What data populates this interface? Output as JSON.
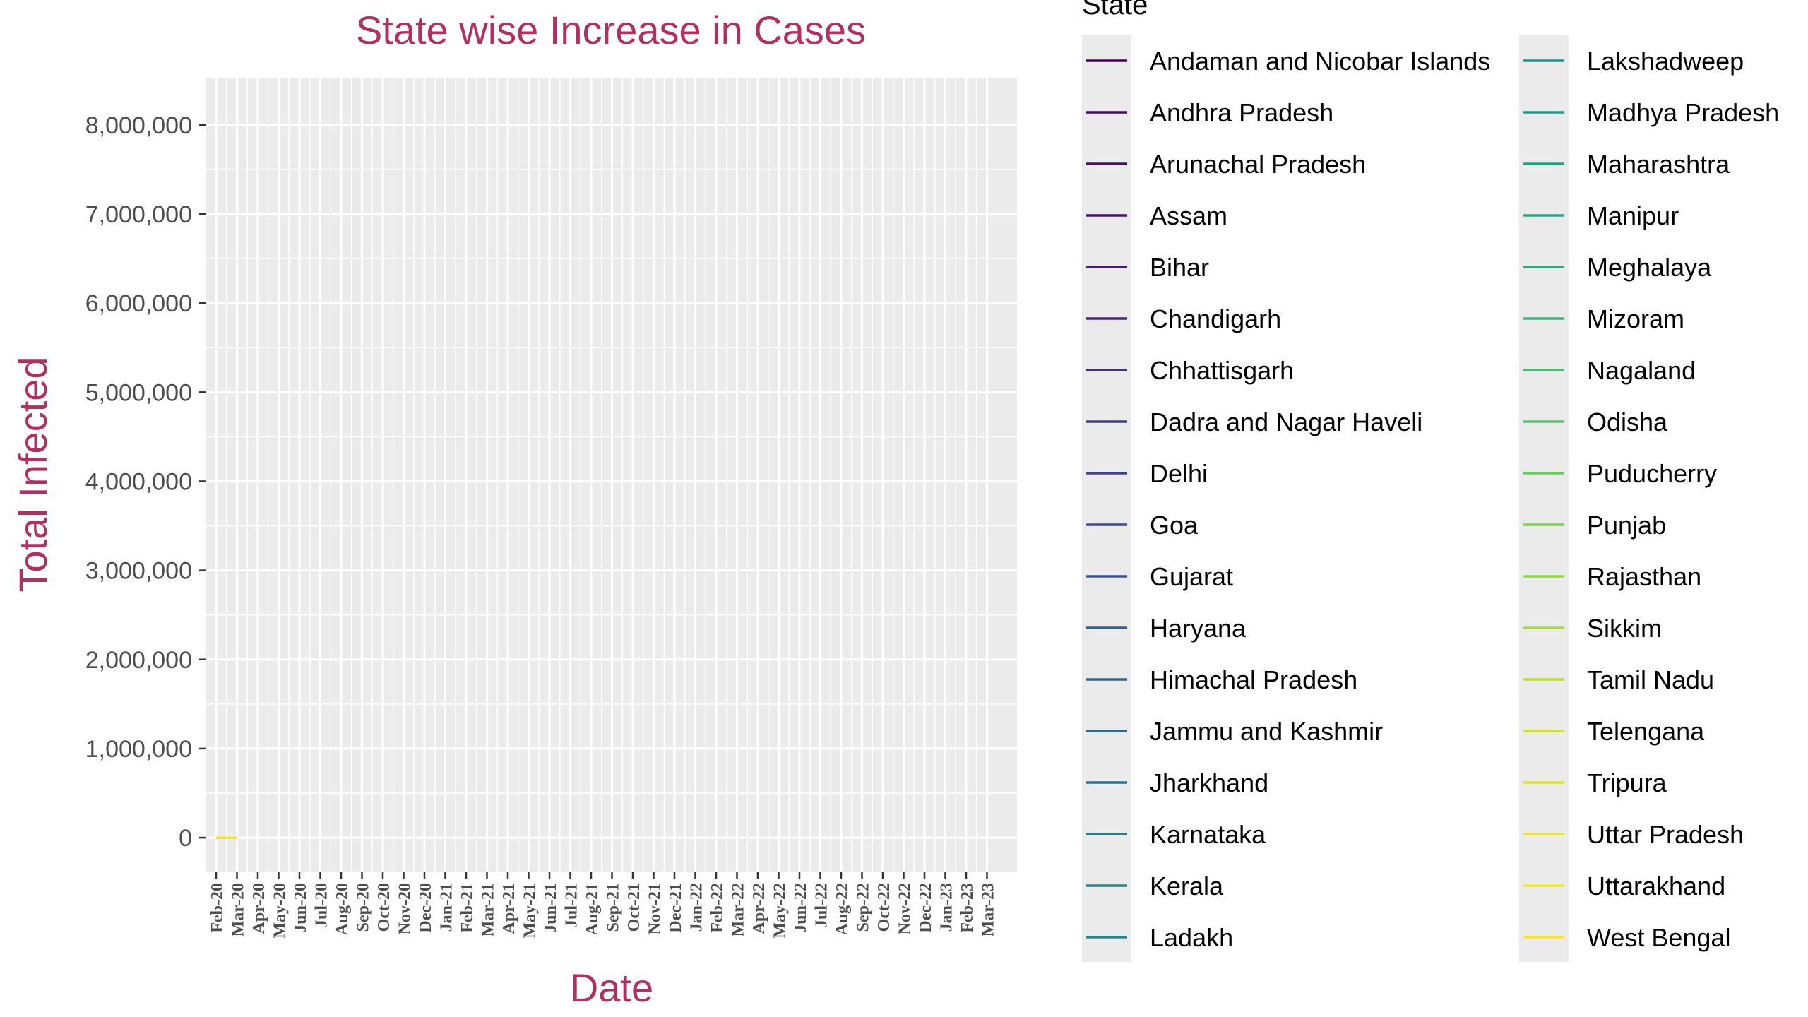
{
  "chart_data": {
    "type": "line",
    "title": "State wise Increase in Cases",
    "xlabel": "Date",
    "ylabel": "Total Infected",
    "title_color": "#B03060",
    "ylim": [
      -380000,
      8530000
    ],
    "y_ticks": [
      0,
      1000000,
      2000000,
      3000000,
      4000000,
      5000000,
      6000000,
      7000000,
      8000000
    ],
    "y_tick_labels": [
      "0",
      "1,000,000",
      "2,000,000",
      "3,000,000",
      "4,000,000",
      "5,000,000",
      "6,000,000",
      "7,000,000",
      "8,000,000"
    ],
    "x_tick_labels": [
      "Feb-20",
      "Mar-20",
      "Apr-20",
      "May-20",
      "Jun-20",
      "Jul-20",
      "Aug-20",
      "Sep-20",
      "Oct-20",
      "Nov-20",
      "Dec-20",
      "Jan-21",
      "Feb-21",
      "Mar-21",
      "Apr-21",
      "May-21",
      "Jun-21",
      "Jul-21",
      "Aug-21",
      "Sep-21",
      "Oct-21",
      "Nov-21",
      "Dec-21",
      "Jan-22",
      "Feb-22",
      "Mar-22",
      "Apr-22",
      "May-22",
      "Jun-22",
      "Jul-22",
      "Aug-22",
      "Sep-22",
      "Oct-22",
      "Nov-22",
      "Dec-22",
      "Jan-23",
      "Feb-23",
      "Mar-23"
    ],
    "grid": true,
    "panel_background": "#EBEBEB",
    "legend": {
      "title": "State",
      "placement": "right",
      "columns": 2
    },
    "series": [
      {
        "name": "Andaman and Nicobar Islands",
        "color": "#440154",
        "x": [
          "Feb-20",
          "Mar-20"
        ],
        "values": [
          0,
          0
        ]
      },
      {
        "name": "Andhra Pradesh",
        "color": "#46085C",
        "x": [
          "Feb-20",
          "Mar-20"
        ],
        "values": [
          0,
          0
        ]
      },
      {
        "name": "Arunachal Pradesh",
        "color": "#471063",
        "x": [
          "Feb-20",
          "Mar-20"
        ],
        "values": [
          0,
          0
        ]
      },
      {
        "name": "Assam",
        "color": "#481769",
        "x": [
          "Feb-20",
          "Mar-20"
        ],
        "values": [
          0,
          0
        ]
      },
      {
        "name": "Bihar",
        "color": "#481D6F",
        "x": [
          "Feb-20",
          "Mar-20"
        ],
        "values": [
          0,
          0
        ]
      },
      {
        "name": "Chandigarh",
        "color": "#472575",
        "x": [
          "Feb-20",
          "Mar-20"
        ],
        "values": [
          0,
          0
        ]
      },
      {
        "name": "Chhattisgarh",
        "color": "#462C7B",
        "x": [
          "Feb-20",
          "Mar-20"
        ],
        "values": [
          0,
          0
        ]
      },
      {
        "name": "Dadra and Nagar Haveli",
        "color": "#433E85",
        "x": [
          "Feb-20",
          "Mar-20"
        ],
        "values": [
          0,
          0
        ]
      },
      {
        "name": "Delhi",
        "color": "#404588",
        "x": [
          "Feb-20",
          "Mar-20"
        ],
        "values": [
          0,
          0
        ]
      },
      {
        "name": "Goa",
        "color": "#3E4A89",
        "x": [
          "Feb-20",
          "Mar-20"
        ],
        "values": [
          0,
          0
        ]
      },
      {
        "name": "Gujarat",
        "color": "#39568C",
        "x": [
          "Feb-20",
          "Mar-20"
        ],
        "values": [
          0,
          0
        ]
      },
      {
        "name": "Haryana",
        "color": "#355E8D",
        "x": [
          "Feb-20",
          "Mar-20"
        ],
        "values": [
          0,
          0
        ]
      },
      {
        "name": "Himachal Pradesh",
        "color": "#31668E",
        "x": [
          "Feb-20",
          "Mar-20"
        ],
        "values": [
          0,
          0
        ]
      },
      {
        "name": "Jammu and Kashmir",
        "color": "#2E6D8E",
        "x": [
          "Feb-20",
          "Mar-20"
        ],
        "values": [
          0,
          0
        ]
      },
      {
        "name": "Jharkhand",
        "color": "#2B748E",
        "x": [
          "Feb-20",
          "Mar-20"
        ],
        "values": [
          0,
          0
        ]
      },
      {
        "name": "Karnataka",
        "color": "#287C8E",
        "x": [
          "Feb-20",
          "Mar-20"
        ],
        "values": [
          0,
          0
        ]
      },
      {
        "name": "Kerala",
        "color": "#25838E",
        "x": [
          "Feb-20",
          "Mar-20"
        ],
        "values": [
          0,
          0
        ]
      },
      {
        "name": "Ladakh",
        "color": "#228A8D",
        "x": [
          "Feb-20",
          "Mar-20"
        ],
        "values": [
          0,
          0
        ]
      },
      {
        "name": "Lakshadweep",
        "color": "#20928C",
        "x": [
          "Feb-20",
          "Mar-20"
        ],
        "values": [
          0,
          0
        ]
      },
      {
        "name": "Madhya Pradesh",
        "color": "#1F998A",
        "x": [
          "Feb-20",
          "Mar-20"
        ],
        "values": [
          0,
          0
        ]
      },
      {
        "name": "Maharashtra",
        "color": "#1FA088",
        "x": [
          "Feb-20",
          "Mar-20"
        ],
        "values": [
          0,
          0
        ]
      },
      {
        "name": "Manipur",
        "color": "#22A884",
        "x": [
          "Feb-20",
          "Mar-20"
        ],
        "values": [
          0,
          0
        ]
      },
      {
        "name": "Meghalaya",
        "color": "#29AF7F",
        "x": [
          "Feb-20",
          "Mar-20"
        ],
        "values": [
          0,
          0
        ]
      },
      {
        "name": "Mizoram",
        "color": "#35B779",
        "x": [
          "Feb-20",
          "Mar-20"
        ],
        "values": [
          0,
          0
        ]
      },
      {
        "name": "Nagaland",
        "color": "#43BF71",
        "x": [
          "Feb-20",
          "Mar-20"
        ],
        "values": [
          0,
          0
        ]
      },
      {
        "name": "Odisha",
        "color": "#55C667",
        "x": [
          "Feb-20",
          "Mar-20"
        ],
        "values": [
          0,
          0
        ]
      },
      {
        "name": "Puducherry",
        "color": "#67CC5C",
        "x": [
          "Feb-20",
          "Mar-20"
        ],
        "values": [
          0,
          0
        ]
      },
      {
        "name": "Punjab",
        "color": "#7AD151",
        "x": [
          "Feb-20",
          "Mar-20"
        ],
        "values": [
          0,
          0
        ]
      },
      {
        "name": "Rajasthan",
        "color": "#8FD744",
        "x": [
          "Feb-20",
          "Mar-20"
        ],
        "values": [
          0,
          0
        ]
      },
      {
        "name": "Sikkim",
        "color": "#A5DB36",
        "x": [
          "Feb-20",
          "Mar-20"
        ],
        "values": [
          0,
          0
        ]
      },
      {
        "name": "Tamil Nadu",
        "color": "#BBDF27",
        "x": [
          "Feb-20",
          "Mar-20"
        ],
        "values": [
          0,
          0
        ]
      },
      {
        "name": "Telengana",
        "color": "#D2E21B",
        "x": [
          "Feb-20",
          "Mar-20"
        ],
        "values": [
          0,
          0
        ]
      },
      {
        "name": "Tripura",
        "color": "#E2E418",
        "x": [
          "Feb-20",
          "Mar-20"
        ],
        "values": [
          0,
          0
        ]
      },
      {
        "name": "Uttar Pradesh",
        "color": "#F0E51C",
        "x": [
          "Feb-20",
          "Mar-20"
        ],
        "values": [
          0,
          0
        ]
      },
      {
        "name": "Uttarakhand",
        "color": "#F8E621",
        "x": [
          "Feb-20",
          "Mar-20"
        ],
        "values": [
          0,
          0
        ]
      },
      {
        "name": "West Bengal",
        "color": "#FDE725",
        "x": [
          "Feb-20",
          "Mar-20"
        ],
        "values": [
          0,
          0
        ]
      }
    ]
  }
}
